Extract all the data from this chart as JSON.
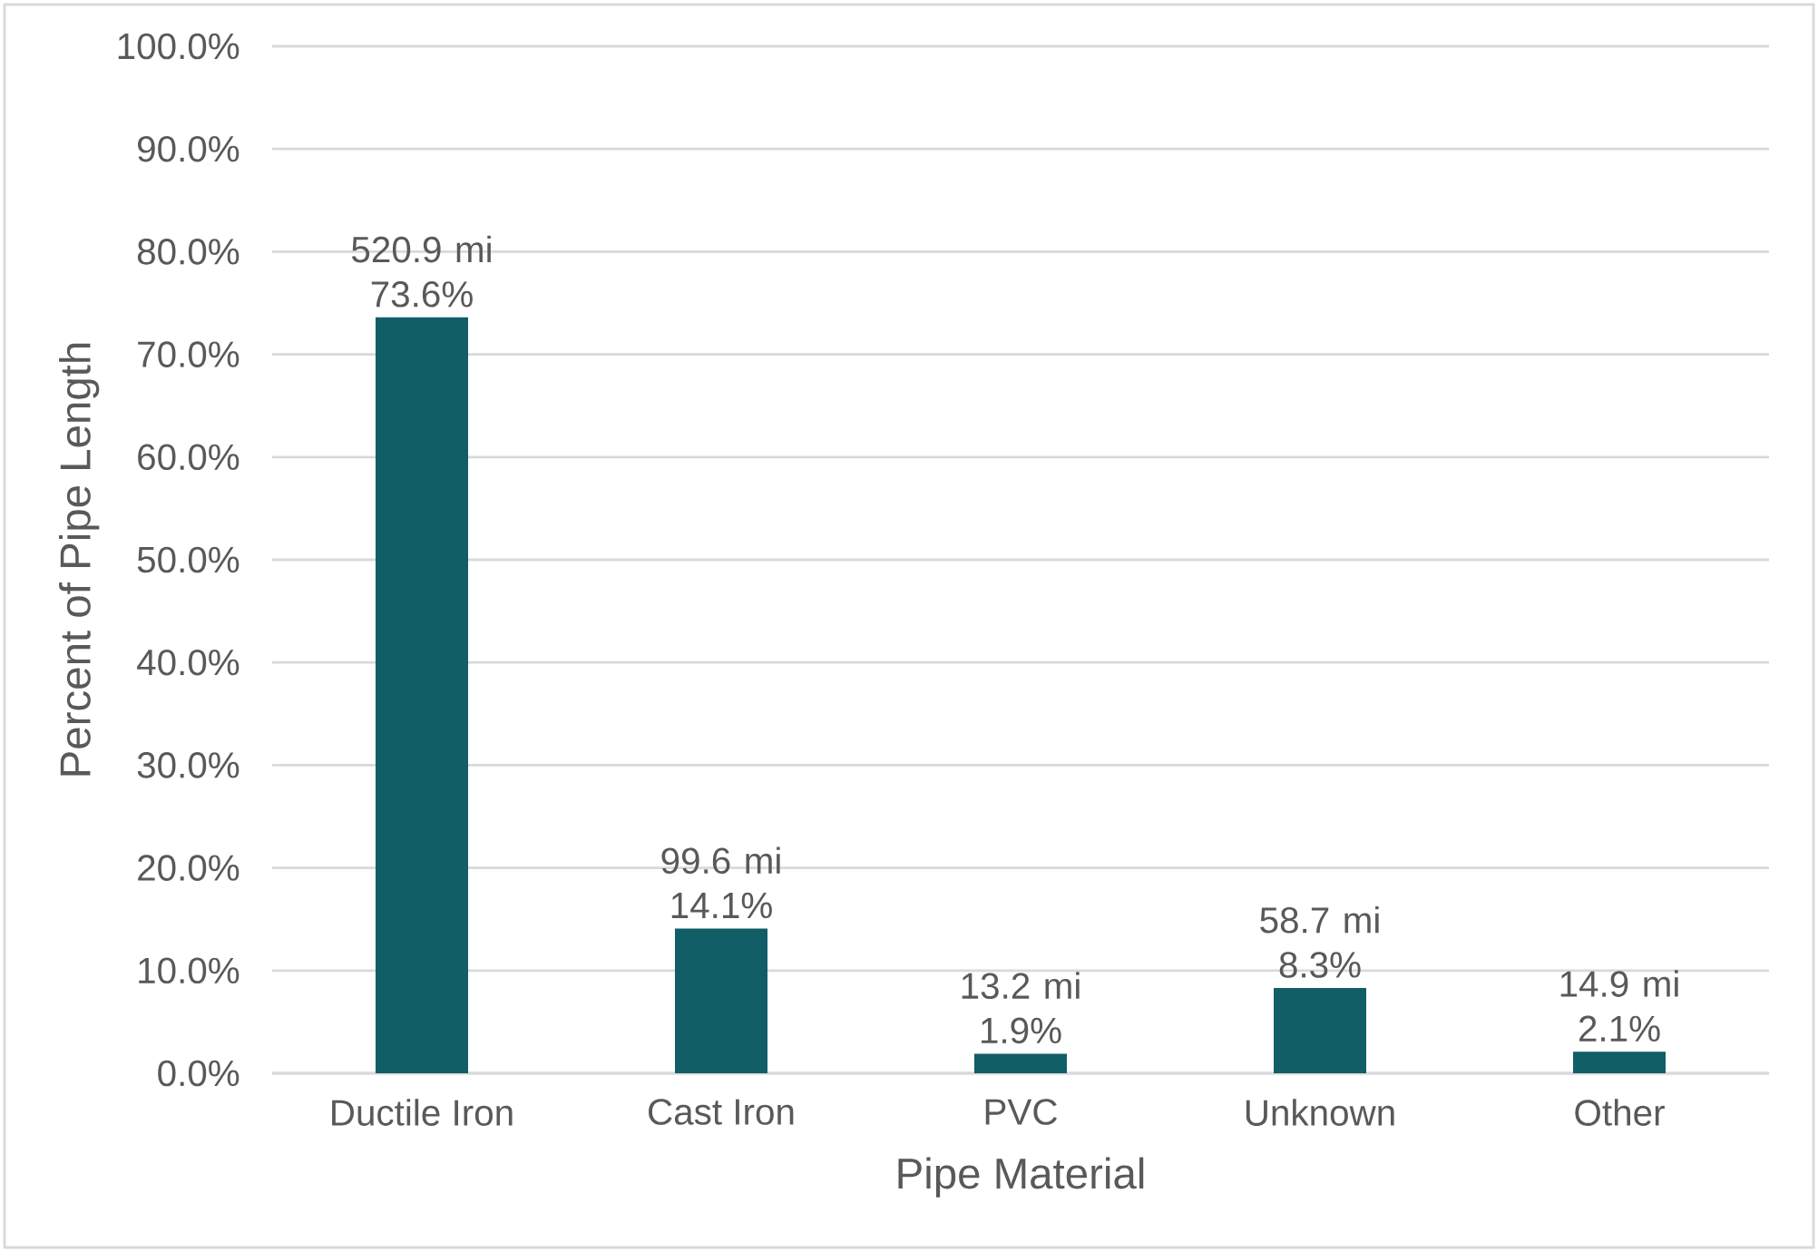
{
  "chart_data": {
    "type": "bar",
    "xlabel": "Pipe Material",
    "ylabel": "Percent of Pipe Length",
    "categories": [
      "Ductile Iron",
      "Cast Iron",
      "PVC",
      "Unknown",
      "Other"
    ],
    "values": [
      73.6,
      14.1,
      1.9,
      8.3,
      2.1
    ],
    "value_labels": [
      "520.9 mi 73.6%",
      "99.6 mi 14.1%",
      "13.2 mi 1.9%",
      "58.7 mi 8.3%",
      "14.9 mi 2.1%"
    ],
    "color": "#115e67",
    "ylim": [
      0,
      100
    ],
    "yticks": [
      {
        "value": 0,
        "label": "0.0%"
      },
      {
        "value": 10,
        "label": "10.0%"
      },
      {
        "value": 20,
        "label": "20.0%"
      },
      {
        "value": 30,
        "label": "30.0%"
      },
      {
        "value": 40,
        "label": "40.0%"
      },
      {
        "value": 50,
        "label": "50.0%"
      },
      {
        "value": 60,
        "label": "60.0%"
      },
      {
        "value": 70,
        "label": "70.0%"
      },
      {
        "value": 80,
        "label": "80.0%"
      },
      {
        "value": 90,
        "label": "90.0%"
      },
      {
        "value": 100,
        "label": "100.0%"
      }
    ],
    "grid": "y"
  }
}
